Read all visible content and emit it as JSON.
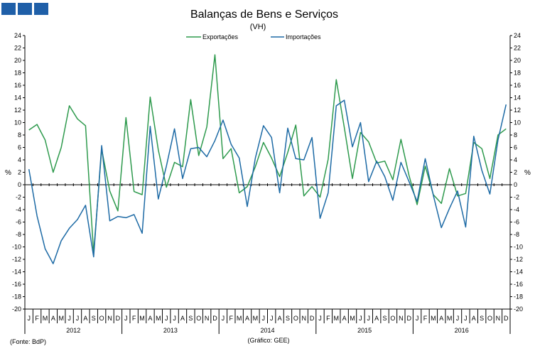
{
  "colors": {
    "exports": "#2e9a4d",
    "imports": "#1d6aa5",
    "logo": "#1f5fa8"
  },
  "chart_data": {
    "type": "line",
    "title": "Balanças de Bens e Serviços",
    "subtitle": "(VH)",
    "ylabel_left": "%",
    "ylabel_right": "%",
    "ylim": [
      -20,
      24
    ],
    "yticks": [
      -20,
      -18,
      -16,
      -14,
      -12,
      -10,
      -8,
      -6,
      -4,
      -2,
      0,
      2,
      4,
      6,
      8,
      10,
      12,
      14,
      16,
      18,
      20,
      22,
      24
    ],
    "grid": false,
    "legend_position": "top-center",
    "month_labels": [
      "J",
      "F",
      "M",
      "A",
      "M",
      "J",
      "J",
      "A",
      "S",
      "O",
      "N",
      "D"
    ],
    "years": [
      "2012",
      "2013",
      "2014",
      "2015",
      "2016"
    ],
    "series": [
      {
        "name": "Exportações",
        "color_key": "exports",
        "values": [
          8.8,
          9.7,
          7.2,
          2.0,
          6.0,
          12.7,
          10.6,
          9.5,
          -11.0,
          5.7,
          -1.0,
          -4.2,
          10.8,
          -1.1,
          -1.6,
          14.1,
          5.6,
          -0.4,
          3.6,
          2.9,
          13.7,
          4.7,
          9.3,
          20.9,
          4.2,
          5.8,
          -1.3,
          -0.3,
          2.9,
          6.8,
          4.3,
          1.3,
          5.2,
          9.6,
          -1.8,
          -0.3,
          -2.0,
          4.1,
          16.9,
          9.2,
          1.0,
          8.4,
          6.9,
          3.5,
          3.8,
          0.8,
          7.3,
          1.5,
          -3.2,
          3.0,
          -1.6,
          -3.0,
          2.6,
          -1.8,
          -1.4,
          6.8,
          5.8,
          1.0,
          8.0,
          9.0
        ]
      },
      {
        "name": "Importações",
        "color_key": "imports",
        "values": [
          2.5,
          -5.0,
          -10.3,
          -12.7,
          -9.0,
          -7.0,
          -5.6,
          -3.3,
          -11.6,
          6.3,
          -5.8,
          -5.1,
          -5.3,
          -4.8,
          -7.8,
          9.4,
          -2.3,
          3.0,
          9.0,
          1.0,
          5.8,
          6.0,
          4.5,
          7.1,
          10.4,
          6.5,
          4.3,
          -3.5,
          4.3,
          9.5,
          7.6,
          -1.3,
          9.1,
          4.2,
          4.0,
          7.6,
          -5.4,
          -1.3,
          12.7,
          13.6,
          6.1,
          10.0,
          0.5,
          3.8,
          1.3,
          -2.5,
          3.6,
          0.5,
          -2.7,
          4.2,
          -1.7,
          -6.9,
          -3.8,
          -1.0,
          -6.8,
          7.8,
          2.3,
          -1.5,
          7.2,
          12.9
        ]
      }
    ]
  },
  "footer": {
    "source": "(Fonte: BdP)",
    "credit": "(Gráfico: GEE)"
  }
}
